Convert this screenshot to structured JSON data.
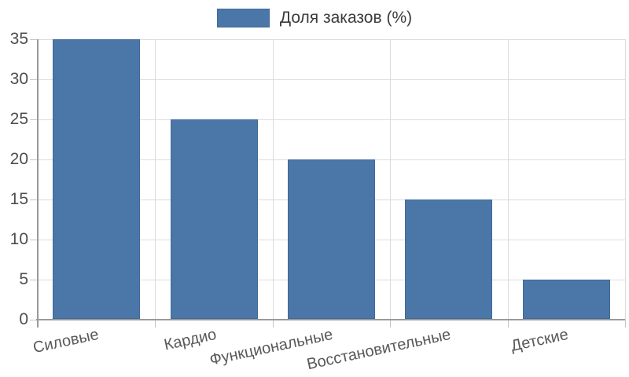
{
  "chart_data": {
    "type": "bar",
    "title": "",
    "legend": "Доля заказов (%)",
    "legend_position": "top-center",
    "categories": [
      "Силовые",
      "Кардио",
      "Функциональные",
      "Восстановительные",
      "Детские"
    ],
    "series": [
      {
        "name": "Доля заказов (%)",
        "values": [
          35,
          25,
          20,
          15,
          5
        ]
      }
    ],
    "xlabel": "",
    "ylabel": "",
    "ylim": [
      0,
      35
    ],
    "yticks": [
      0,
      5,
      10,
      15,
      20,
      25,
      30,
      35
    ],
    "grid": true,
    "x_label_rotation_deg": -12,
    "colors": {
      "bar": "#4a77a8",
      "bar_border": "#3f6a9a",
      "grid": "#dcdcdc",
      "axis": "#999999",
      "tick": "#c4c4c4",
      "y_tick_label": "#4d4d4d",
      "x_tick_label": "#595959",
      "legend_text": "#3c3c3c",
      "background": "#ffffff"
    }
  }
}
